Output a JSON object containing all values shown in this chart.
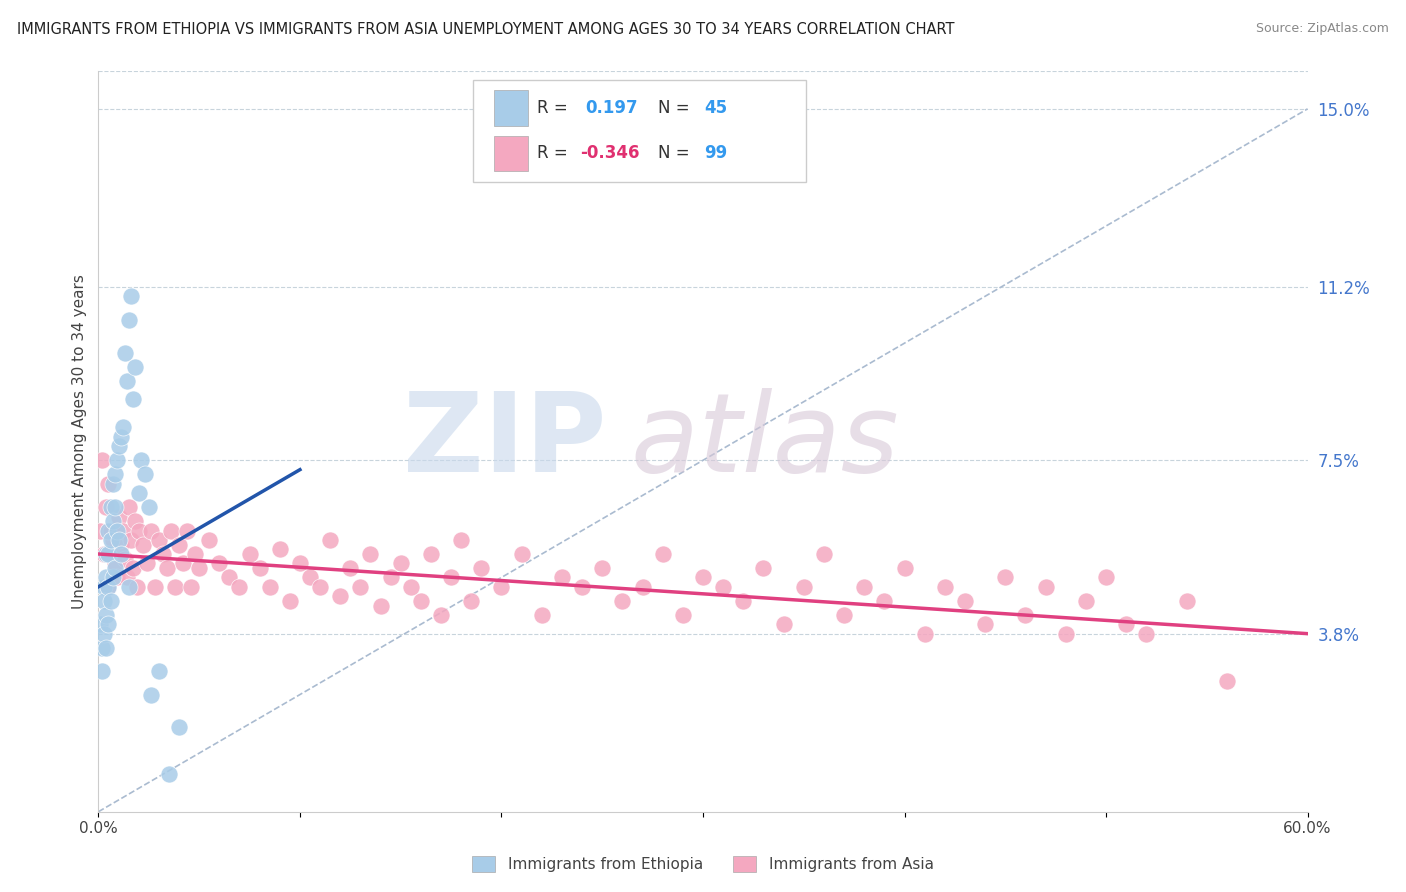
{
  "title": "IMMIGRANTS FROM ETHIOPIA VS IMMIGRANTS FROM ASIA UNEMPLOYMENT AMONG AGES 30 TO 34 YEARS CORRELATION CHART",
  "source": "Source: ZipAtlas.com",
  "ylabel": "Unemployment Among Ages 30 to 34 years",
  "xmin": 0.0,
  "xmax": 0.6,
  "ymin": 0.0,
  "ymax": 0.158,
  "right_yticks": [
    0.038,
    0.075,
    0.112,
    0.15
  ],
  "right_yticklabels": [
    "3.8%",
    "7.5%",
    "11.2%",
    "15.0%"
  ],
  "xtick_positions": [
    0.0,
    0.1,
    0.2,
    0.3,
    0.4,
    0.5,
    0.6
  ],
  "xticklabels": [
    "0.0%",
    "",
    "",
    "",
    "",
    "",
    "60.0%"
  ],
  "legend_ethiopia_r": "0.197",
  "legend_ethiopia_n": "45",
  "legend_asia_r": "-0.346",
  "legend_asia_n": "99",
  "ethiopia_color": "#a8cce8",
  "asia_color": "#f4a8c0",
  "ethiopia_line_color": "#2255aa",
  "asia_line_color": "#e04080",
  "diagonal_line_color": "#aabbd0",
  "watermark_zip_color": "#c8d8ec",
  "watermark_atlas_color": "#d8c8d8",
  "background_color": "#ffffff",
  "eth_trend_x0": 0.0,
  "eth_trend_x1": 0.1,
  "eth_trend_y0": 0.048,
  "eth_trend_y1": 0.073,
  "asia_trend_x0": 0.0,
  "asia_trend_x1": 0.6,
  "asia_trend_y0": 0.055,
  "asia_trend_y1": 0.038,
  "ethiopia_scatter_x": [
    0.001,
    0.002,
    0.002,
    0.003,
    0.003,
    0.003,
    0.004,
    0.004,
    0.004,
    0.004,
    0.005,
    0.005,
    0.005,
    0.005,
    0.006,
    0.006,
    0.006,
    0.007,
    0.007,
    0.007,
    0.008,
    0.008,
    0.008,
    0.009,
    0.009,
    0.01,
    0.01,
    0.011,
    0.011,
    0.012,
    0.013,
    0.014,
    0.015,
    0.015,
    0.016,
    0.017,
    0.018,
    0.02,
    0.021,
    0.023,
    0.025,
    0.026,
    0.03,
    0.035,
    0.04
  ],
  "ethiopia_scatter_y": [
    0.04,
    0.035,
    0.03,
    0.048,
    0.045,
    0.038,
    0.055,
    0.05,
    0.042,
    0.035,
    0.06,
    0.055,
    0.048,
    0.04,
    0.065,
    0.058,
    0.045,
    0.07,
    0.062,
    0.05,
    0.072,
    0.065,
    0.052,
    0.075,
    0.06,
    0.078,
    0.058,
    0.08,
    0.055,
    0.082,
    0.098,
    0.092,
    0.105,
    0.048,
    0.11,
    0.088,
    0.095,
    0.068,
    0.075,
    0.072,
    0.065,
    0.025,
    0.03,
    0.008,
    0.018
  ],
  "asia_scatter_x": [
    0.001,
    0.002,
    0.003,
    0.004,
    0.005,
    0.005,
    0.006,
    0.007,
    0.008,
    0.009,
    0.01,
    0.011,
    0.012,
    0.013,
    0.014,
    0.015,
    0.016,
    0.017,
    0.018,
    0.019,
    0.02,
    0.022,
    0.024,
    0.026,
    0.028,
    0.03,
    0.032,
    0.034,
    0.036,
    0.038,
    0.04,
    0.042,
    0.044,
    0.046,
    0.048,
    0.05,
    0.055,
    0.06,
    0.065,
    0.07,
    0.075,
    0.08,
    0.085,
    0.09,
    0.095,
    0.1,
    0.105,
    0.11,
    0.115,
    0.12,
    0.125,
    0.13,
    0.135,
    0.14,
    0.145,
    0.15,
    0.155,
    0.16,
    0.165,
    0.17,
    0.175,
    0.18,
    0.185,
    0.19,
    0.2,
    0.21,
    0.22,
    0.23,
    0.24,
    0.25,
    0.26,
    0.27,
    0.28,
    0.29,
    0.3,
    0.31,
    0.32,
    0.33,
    0.34,
    0.35,
    0.36,
    0.37,
    0.38,
    0.39,
    0.4,
    0.41,
    0.42,
    0.43,
    0.44,
    0.45,
    0.46,
    0.47,
    0.48,
    0.49,
    0.5,
    0.51,
    0.52,
    0.54,
    0.56
  ],
  "asia_scatter_y": [
    0.06,
    0.075,
    0.055,
    0.065,
    0.07,
    0.048,
    0.06,
    0.058,
    0.053,
    0.05,
    0.063,
    0.057,
    0.06,
    0.054,
    0.05,
    0.065,
    0.058,
    0.052,
    0.062,
    0.048,
    0.06,
    0.057,
    0.053,
    0.06,
    0.048,
    0.058,
    0.055,
    0.052,
    0.06,
    0.048,
    0.057,
    0.053,
    0.06,
    0.048,
    0.055,
    0.052,
    0.058,
    0.053,
    0.05,
    0.048,
    0.055,
    0.052,
    0.048,
    0.056,
    0.045,
    0.053,
    0.05,
    0.048,
    0.058,
    0.046,
    0.052,
    0.048,
    0.055,
    0.044,
    0.05,
    0.053,
    0.048,
    0.045,
    0.055,
    0.042,
    0.05,
    0.058,
    0.045,
    0.052,
    0.048,
    0.055,
    0.042,
    0.05,
    0.048,
    0.052,
    0.045,
    0.048,
    0.055,
    0.042,
    0.05,
    0.048,
    0.045,
    0.052,
    0.04,
    0.048,
    0.055,
    0.042,
    0.048,
    0.045,
    0.052,
    0.038,
    0.048,
    0.045,
    0.04,
    0.05,
    0.042,
    0.048,
    0.038,
    0.045,
    0.05,
    0.04,
    0.038,
    0.045,
    0.028
  ]
}
